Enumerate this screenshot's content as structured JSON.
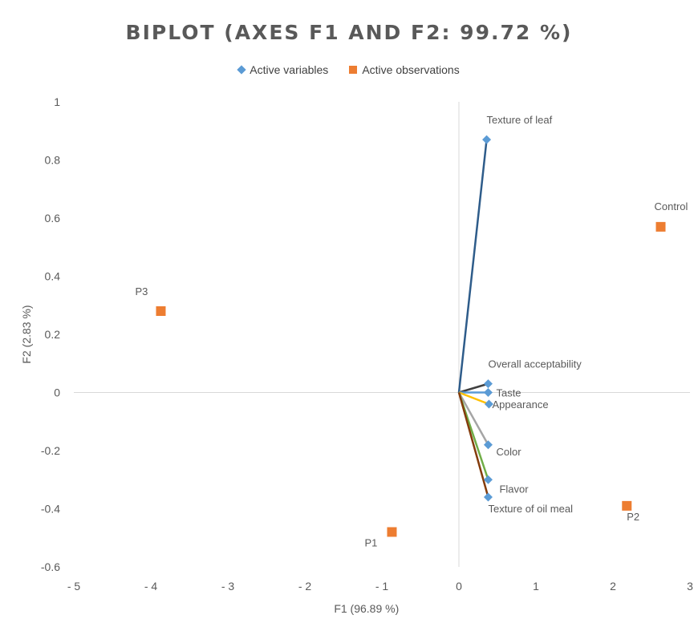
{
  "chart_data": {
    "type": "scatter",
    "title": "BIPLOT (AXES F1 AND F2: 99.72 %)",
    "xlabel": "F1 (96.89 %)",
    "ylabel": "F2 (2.83 %)",
    "xlim": [
      -5,
      3
    ],
    "ylim": [
      -0.6,
      1
    ],
    "x_ticks": [
      "- 5",
      "- 4",
      "- 3",
      "- 2",
      "- 1",
      "0",
      "1",
      "2",
      "3"
    ],
    "y_ticks": [
      "1",
      "0.8",
      "0.6",
      "0.4",
      "0.2",
      "0",
      "-0.2",
      "-0.4",
      "-0.6"
    ],
    "legend_placement": "top-center",
    "series": [
      {
        "name": "Active variables",
        "marker": "diamond",
        "color": "#5b9bd5",
        "points": [
          {
            "label": "Texture of leaf",
            "x": 0.36,
            "y": 0.87,
            "line_color": "#2e5c8a"
          },
          {
            "label": "Overall acceptability",
            "x": 0.38,
            "y": 0.03,
            "line_color": "#404040"
          },
          {
            "label": "Taste",
            "x": 0.38,
            "y": 0.0,
            "line_color": "#5b9bd5"
          },
          {
            "label": "Appearance",
            "x": 0.39,
            "y": -0.04,
            "line_color": "#ffc000"
          },
          {
            "label": "Color",
            "x": 0.38,
            "y": -0.18,
            "line_color": "#a5a5a5"
          },
          {
            "label": "Flavor",
            "x": 0.38,
            "y": -0.3,
            "line_color": "#70ad47"
          },
          {
            "label": "Texture of oil meal",
            "x": 0.38,
            "y": -0.36,
            "line_color": "#843c0c"
          }
        ]
      },
      {
        "name": "Active observations",
        "marker": "square",
        "color": "#ed7d31",
        "points": [
          {
            "label": "Control",
            "x": 2.62,
            "y": 0.57
          },
          {
            "label": "P3",
            "x": -3.87,
            "y": 0.28
          },
          {
            "label": "P1",
            "x": -0.87,
            "y": -0.48
          },
          {
            "label": "P2",
            "x": 2.18,
            "y": -0.39
          }
        ]
      }
    ]
  }
}
